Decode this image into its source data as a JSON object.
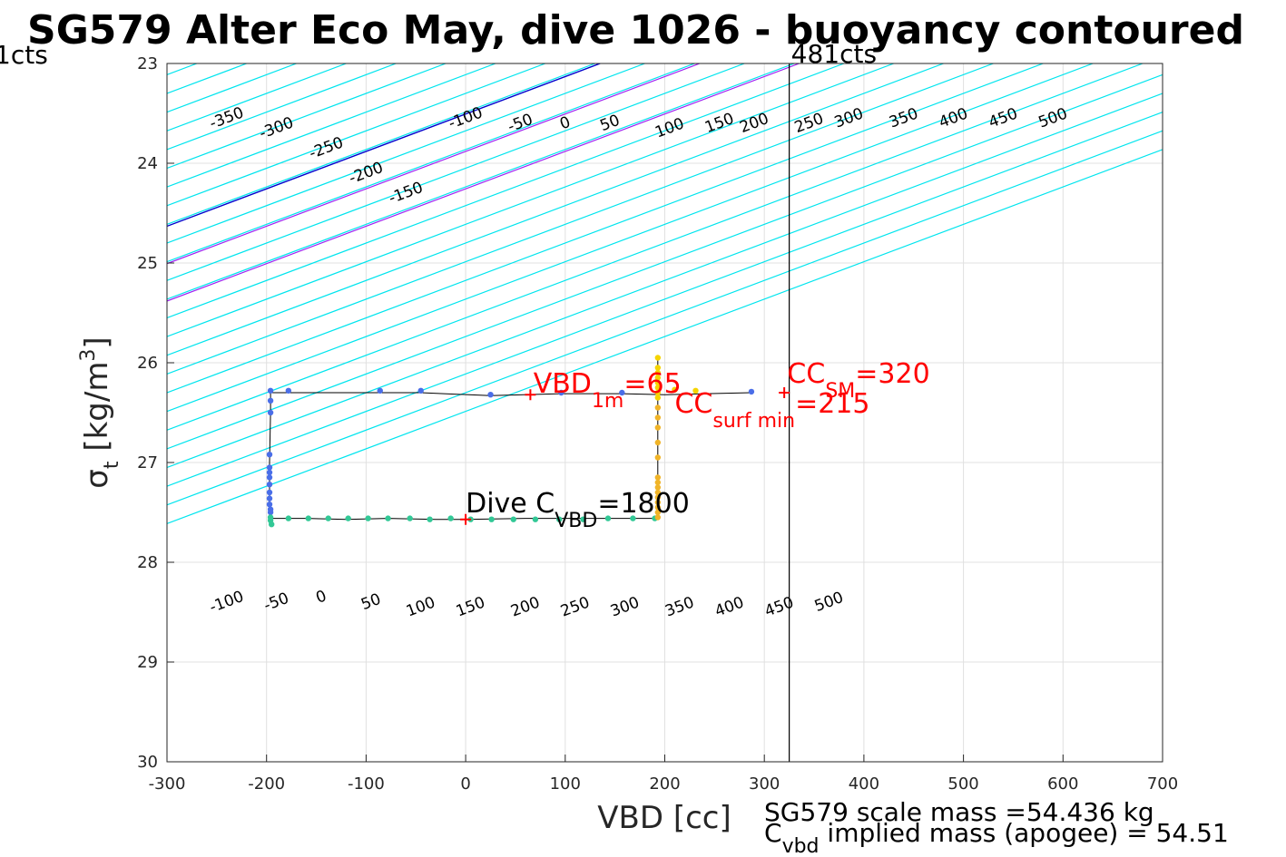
{
  "chart_data": {
    "type": "scatter",
    "title": "SG579 Alter Eco May, dive 1026 - buoyancy contoured",
    "xlabel": "VBD [cc]",
    "ylabel_main": "σ",
    "ylabel_sub": "t",
    "ylabel_unit": " [kg/m",
    "ylabel_sup": "3",
    "ylabel_close": "]",
    "xlim": [
      -300,
      700
    ],
    "ylim": [
      23,
      30
    ],
    "y_reversed": true,
    "grid": true,
    "xticks": [
      "-300",
      "-200",
      "-100",
      "0",
      "100",
      "200",
      "300",
      "400",
      "500",
      "600",
      "700"
    ],
    "yticks": [
      "23",
      "24",
      "25",
      "26",
      "27",
      "28",
      "29",
      "30"
    ],
    "top_left_label": "1cts",
    "vline": {
      "x": 325,
      "label": "481cts"
    },
    "contour_slope": 0.00375,
    "contours_top_row": [
      "-350",
      "-300",
      "-250",
      "-200",
      "-150",
      "-100",
      "-50",
      "0",
      "50",
      "100",
      "150",
      "200",
      "250",
      "300",
      "350",
      "400",
      "450",
      "500"
    ],
    "contours_bottom_row": [
      "-100",
      "-50",
      "0",
      "50",
      "100",
      "150",
      "200",
      "250",
      "300",
      "350",
      "400",
      "450",
      "500"
    ],
    "contour_x_at_sigma23": [
      -320,
      -270,
      -220,
      -170,
      -120,
      -70,
      -20,
      30,
      80,
      130,
      180,
      230,
      280,
      330,
      380,
      430,
      480,
      530,
      580,
      630,
      680,
      730,
      780,
      830,
      880,
      930
    ],
    "line_zero_x_at_sigma23": 135,
    "purple_lines_x_at_sigma23": [
      235,
      335
    ],
    "top_contour_label_points": [
      [
        -240,
        23.55
      ],
      [
        -190,
        23.65
      ],
      [
        -140,
        23.85
      ],
      [
        -100,
        24.1
      ],
      [
        -60,
        24.3
      ],
      [
        0,
        23.55
      ],
      [
        55,
        23.6
      ],
      [
        100,
        23.6
      ],
      [
        145,
        23.6
      ],
      [
        205,
        23.65
      ],
      [
        255,
        23.6
      ],
      [
        290,
        23.6
      ],
      [
        345,
        23.6
      ],
      [
        385,
        23.55
      ],
      [
        440,
        23.55
      ],
      [
        490,
        23.55
      ],
      [
        540,
        23.55
      ],
      [
        590,
        23.55
      ]
    ],
    "bottom_contour_label_points": [
      [
        -240,
        28.4
      ],
      [
        -190,
        28.4
      ],
      [
        -145,
        28.35
      ],
      [
        -95,
        28.4
      ],
      [
        -45,
        28.45
      ],
      [
        5,
        28.45
      ],
      [
        60,
        28.45
      ],
      [
        110,
        28.45
      ],
      [
        160,
        28.45
      ],
      [
        215,
        28.45
      ],
      [
        265,
        28.45
      ],
      [
        315,
        28.45
      ],
      [
        365,
        28.4
      ]
    ],
    "trajectory": [
      [
        287,
        26.3
      ],
      [
        200,
        26.32
      ],
      [
        157,
        26.31
      ],
      [
        96,
        26.31
      ],
      [
        25,
        26.33
      ],
      [
        -45,
        26.3
      ],
      [
        -86,
        26.3
      ],
      [
        -178,
        26.3
      ],
      [
        -196,
        26.3
      ],
      [
        -196,
        26.5
      ],
      [
        -197,
        27.0
      ],
      [
        -197,
        27.4
      ],
      [
        -196,
        27.56
      ],
      [
        -180,
        27.56
      ],
      [
        -160,
        27.56
      ],
      [
        -120,
        27.57
      ],
      [
        -78,
        27.56
      ],
      [
        -30,
        27.57
      ],
      [
        0,
        27.57
      ],
      [
        60,
        27.56
      ],
      [
        150,
        27.56
      ],
      [
        193,
        27.56
      ],
      [
        193,
        27.2
      ],
      [
        193,
        26.6
      ],
      [
        193,
        26.3
      ],
      [
        193,
        25.95
      ]
    ],
    "points_blue": [
      [
        287,
        26.29
      ],
      [
        157,
        26.3
      ],
      [
        96,
        26.3
      ],
      [
        25,
        26.32
      ],
      [
        -45,
        26.28
      ],
      [
        -86,
        26.28
      ],
      [
        -178,
        26.28
      ],
      [
        -196,
        26.28
      ],
      [
        -196,
        26.38
      ],
      [
        -196,
        26.5
      ],
      [
        -197,
        26.92
      ],
      [
        -197,
        27.05
      ],
      [
        -197,
        27.1
      ],
      [
        -197,
        27.15
      ],
      [
        -197,
        27.22
      ],
      [
        -197,
        27.3
      ],
      [
        -197,
        27.36
      ],
      [
        -197,
        27.42
      ],
      [
        -196,
        27.47
      ],
      [
        -196,
        27.5
      ]
    ],
    "points_teal": [
      [
        -196,
        27.55
      ],
      [
        -196,
        27.58
      ],
      [
        -195,
        27.62
      ],
      [
        -178,
        27.56
      ],
      [
        -158,
        27.56
      ],
      [
        -138,
        27.56
      ],
      [
        -118,
        27.56
      ],
      [
        -98,
        27.56
      ],
      [
        -78,
        27.56
      ],
      [
        -56,
        27.56
      ],
      [
        -36,
        27.57
      ],
      [
        -15,
        27.56
      ],
      [
        5,
        27.57
      ],
      [
        26,
        27.57
      ],
      [
        48,
        27.57
      ],
      [
        70,
        27.57
      ],
      [
        94,
        27.57
      ],
      [
        118,
        27.57
      ],
      [
        143,
        27.56
      ],
      [
        168,
        27.56
      ],
      [
        190,
        27.56
      ]
    ],
    "points_yellow": [
      [
        193,
        25.95
      ],
      [
        193,
        26.05
      ],
      [
        193,
        26.1
      ],
      [
        193,
        26.15
      ],
      [
        193,
        26.2
      ],
      [
        193,
        26.25
      ],
      [
        193,
        26.3
      ],
      [
        193,
        26.35
      ],
      [
        193,
        26.45
      ],
      [
        193,
        26.55
      ],
      [
        193,
        26.65
      ],
      [
        193,
        26.8
      ],
      [
        193,
        26.95
      ],
      [
        193,
        27.15
      ],
      [
        193,
        27.2
      ],
      [
        193,
        27.25
      ],
      [
        193,
        27.3
      ],
      [
        193,
        27.35
      ],
      [
        193,
        27.4
      ],
      [
        193,
        27.45
      ],
      [
        193,
        27.5
      ],
      [
        193,
        27.55
      ],
      [
        231,
        26.28
      ],
      [
        210,
        26.27
      ]
    ],
    "red_markers": [
      [
        65,
        26.32
      ],
      [
        0,
        27.57
      ],
      [
        320,
        26.3
      ]
    ],
    "annotations": {
      "vbd1m": {
        "main": "VBD",
        "sub": "1m",
        "value": "=65",
        "x": 68,
        "y": 26.3
      },
      "ccsm": {
        "main": "CC",
        "sub": "SM",
        "value": "=320",
        "x": 323,
        "y": 26.2
      },
      "ccsurf": {
        "main": "CC",
        "sub": "surf min",
        "value": "=215",
        "x": 210,
        "y": 26.5
      },
      "divec": {
        "main": "Dive C",
        "sub": "VBD",
        "value": "=1800",
        "x": 0,
        "y": 27.5
      }
    },
    "footer": {
      "line1": "SG579 scale mass =54.436 kg",
      "line2_main": "C",
      "line2_sub": "vbd",
      "line2_rest": " implied mass (apogee) = 54.51"
    },
    "colors": {
      "contour": "#00e5ee",
      "zero_line": "#0000cc",
      "purple": "#a020f0",
      "vline": "#000000",
      "grid": "#e0e0e0",
      "blue_point": "#4a6ee8",
      "teal_point": "#32c896",
      "yellow_point": "#f5d400",
      "orange_point": "#f0b428",
      "red": "#ff0000"
    }
  }
}
